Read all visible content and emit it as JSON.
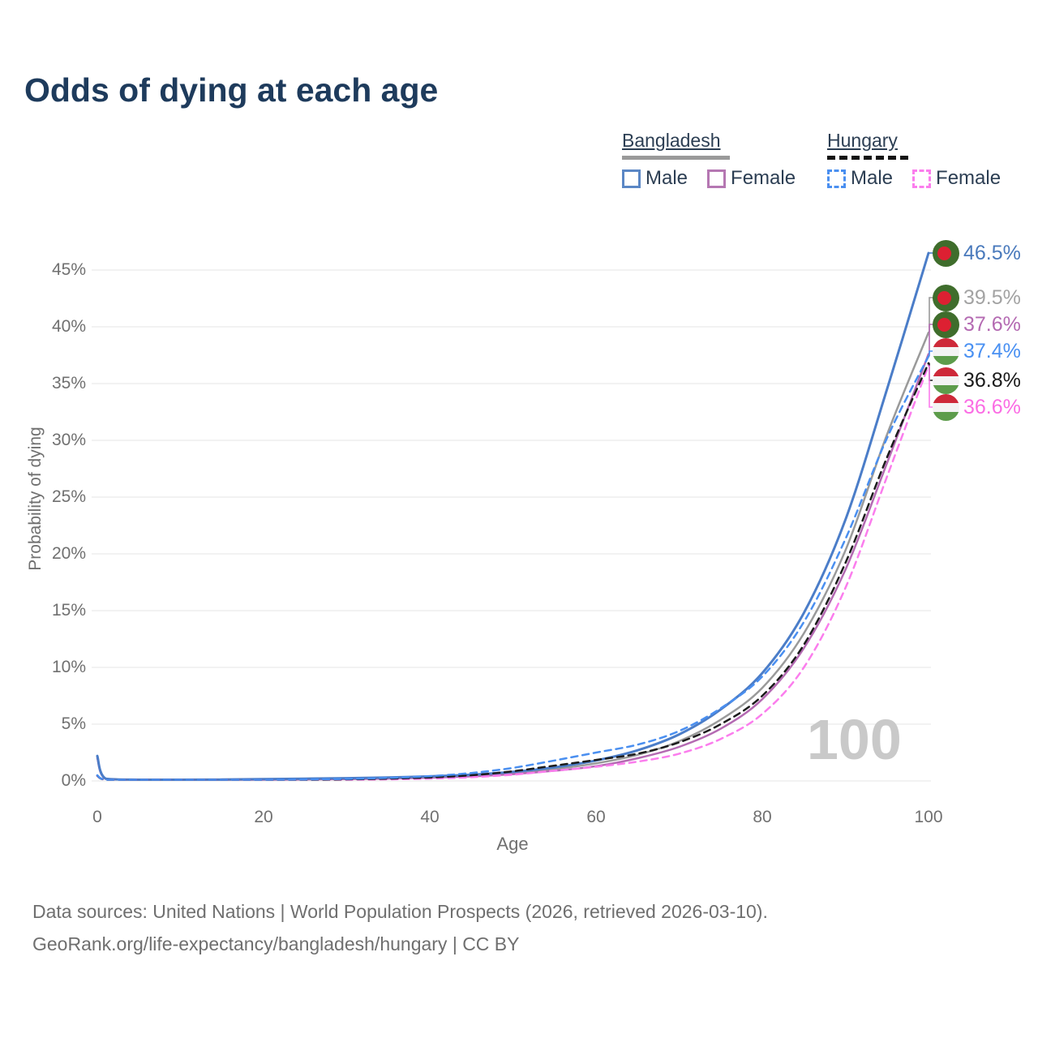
{
  "title": "Odds of dying at each age",
  "watermark": "100",
  "legend": {
    "groups": [
      {
        "name": "Bangladesh",
        "line_style": "solid",
        "line_color": "#9a9a9a",
        "items": [
          {
            "label": "Male",
            "color": "#4b7dc8"
          },
          {
            "label": "Female",
            "color": "#b46ab2"
          }
        ]
      },
      {
        "name": "Hungary",
        "line_style": "dashed",
        "line_color": "#141414",
        "items": [
          {
            "label": "Male",
            "color": "#4a8ff0"
          },
          {
            "label": "Female",
            "color": "#fb7ded"
          }
        ]
      }
    ]
  },
  "footer": {
    "line1": "Data sources: United Nations | World Population Prospects (2026, retrieved 2026-03-10).",
    "line2": "GeoRank.org/life-expectancy/bangladesh/hungary | CC BY"
  },
  "chart_data": {
    "type": "line",
    "title": "Odds of dying at each age",
    "xlabel": "Age",
    "ylabel": "Probability of dying",
    "xlim": [
      0,
      100
    ],
    "ylim_percent": [
      0,
      46.5
    ],
    "grid": "horizontal",
    "x_ticks": [
      0,
      20,
      40,
      60,
      80,
      100
    ],
    "y_ticks_percent": [
      0,
      5,
      10,
      15,
      20,
      25,
      30,
      35,
      40,
      45
    ],
    "y_tick_labels": [
      "0%",
      "5%",
      "10%",
      "15%",
      "20%",
      "25%",
      "30%",
      "35%",
      "40%",
      "45%"
    ],
    "legend_position": "top-right",
    "age_counter": "100",
    "series": [
      {
        "name": "Bangladesh Total",
        "country": "bangladesh",
        "flag": "bangladesh",
        "color": "#9a9a9a",
        "dashed": false,
        "width": 2.5,
        "end_label": "39.5%",
        "label_color": "#a3a3a3",
        "points": [
          [
            0,
            2.1
          ],
          [
            1,
            0.19
          ],
          [
            5,
            0.07
          ],
          [
            10,
            0.07
          ],
          [
            15,
            0.1
          ],
          [
            20,
            0.13
          ],
          [
            25,
            0.17
          ],
          [
            30,
            0.2
          ],
          [
            35,
            0.26
          ],
          [
            40,
            0.34
          ],
          [
            45,
            0.48
          ],
          [
            50,
            0.7
          ],
          [
            55,
            1.05
          ],
          [
            60,
            1.55
          ],
          [
            65,
            2.3
          ],
          [
            70,
            3.5
          ],
          [
            75,
            5.4
          ],
          [
            80,
            8.2
          ],
          [
            85,
            13.0
          ],
          [
            90,
            20.3
          ],
          [
            95,
            30.5
          ],
          [
            100,
            39.5
          ]
        ]
      },
      {
        "name": "Bangladesh Female",
        "country": "bangladesh",
        "flag": "bangladesh",
        "color": "#b46ab2",
        "dashed": false,
        "width": 2.5,
        "end_label": "37.6%",
        "label_color": "#b46ab2",
        "points": [
          [
            0,
            2.0
          ],
          [
            1,
            0.18
          ],
          [
            5,
            0.06
          ],
          [
            10,
            0.06
          ],
          [
            15,
            0.08
          ],
          [
            20,
            0.1
          ],
          [
            25,
            0.13
          ],
          [
            30,
            0.16
          ],
          [
            35,
            0.21
          ],
          [
            40,
            0.28
          ],
          [
            45,
            0.4
          ],
          [
            50,
            0.6
          ],
          [
            55,
            0.9
          ],
          [
            60,
            1.3
          ],
          [
            65,
            2.0
          ],
          [
            70,
            3.0
          ],
          [
            75,
            4.6
          ],
          [
            80,
            7.2
          ],
          [
            85,
            11.7
          ],
          [
            90,
            18.6
          ],
          [
            95,
            28.0
          ],
          [
            100,
            37.6
          ]
        ]
      },
      {
        "name": "Bangladesh Male",
        "country": "bangladesh",
        "flag": "bangladesh",
        "color": "#4b7dc8",
        "dashed": false,
        "width": 3,
        "end_label": "46.5%",
        "label_color": "#4a7abc",
        "points": [
          [
            0,
            2.2
          ],
          [
            1,
            0.2
          ],
          [
            5,
            0.08
          ],
          [
            10,
            0.08
          ],
          [
            15,
            0.12
          ],
          [
            20,
            0.16
          ],
          [
            25,
            0.2
          ],
          [
            30,
            0.24
          ],
          [
            35,
            0.3
          ],
          [
            40,
            0.4
          ],
          [
            45,
            0.55
          ],
          [
            50,
            0.8
          ],
          [
            55,
            1.2
          ],
          [
            60,
            1.8
          ],
          [
            65,
            2.7
          ],
          [
            70,
            4.1
          ],
          [
            75,
            6.3
          ],
          [
            80,
            9.5
          ],
          [
            85,
            14.8
          ],
          [
            90,
            23.0
          ],
          [
            95,
            34.5
          ],
          [
            100,
            46.5
          ]
        ]
      },
      {
        "name": "Hungary Female",
        "country": "hungary",
        "flag": "hungary",
        "color": "#fb7ded",
        "dashed": true,
        "width": 2.5,
        "end_label": "36.6%",
        "label_color": "#fb6ce4",
        "points": [
          [
            0,
            0.44
          ],
          [
            1,
            0.04
          ],
          [
            5,
            0.02
          ],
          [
            10,
            0.02
          ],
          [
            15,
            0.04
          ],
          [
            20,
            0.06
          ],
          [
            25,
            0.08
          ],
          [
            30,
            0.1
          ],
          [
            35,
            0.14
          ],
          [
            40,
            0.21
          ],
          [
            45,
            0.33
          ],
          [
            50,
            0.55
          ],
          [
            55,
            0.9
          ],
          [
            60,
            1.25
          ],
          [
            65,
            1.7
          ],
          [
            70,
            2.4
          ],
          [
            75,
            3.7
          ],
          [
            80,
            5.9
          ],
          [
            85,
            10.0
          ],
          [
            90,
            17.0
          ],
          [
            95,
            26.8
          ],
          [
            100,
            36.6
          ]
        ]
      },
      {
        "name": "Hungary Total",
        "country": "hungary",
        "flag": "hungary",
        "color": "#1c1c1c",
        "dashed": true,
        "width": 2.5,
        "end_label": "36.8%",
        "label_color": "#1a1a1a",
        "points": [
          [
            0,
            0.47
          ],
          [
            1,
            0.04
          ],
          [
            5,
            0.02
          ],
          [
            10,
            0.02
          ],
          [
            15,
            0.05
          ],
          [
            20,
            0.08
          ],
          [
            25,
            0.1
          ],
          [
            30,
            0.14
          ],
          [
            35,
            0.2
          ],
          [
            40,
            0.31
          ],
          [
            45,
            0.5
          ],
          [
            50,
            0.85
          ],
          [
            55,
            1.35
          ],
          [
            60,
            1.85
          ],
          [
            65,
            2.4
          ],
          [
            70,
            3.4
          ],
          [
            75,
            5.0
          ],
          [
            80,
            7.5
          ],
          [
            85,
            12.0
          ],
          [
            90,
            19.2
          ],
          [
            95,
            28.5
          ],
          [
            100,
            36.8
          ]
        ]
      },
      {
        "name": "Hungary Male",
        "country": "hungary",
        "flag": "hungary",
        "color": "#4a8ff0",
        "dashed": true,
        "width": 2.5,
        "end_label": "37.4%",
        "label_color": "#4990f2",
        "points": [
          [
            0,
            0.5
          ],
          [
            1,
            0.05
          ],
          [
            5,
            0.02
          ],
          [
            10,
            0.02
          ],
          [
            15,
            0.06
          ],
          [
            20,
            0.1
          ],
          [
            25,
            0.13
          ],
          [
            30,
            0.18
          ],
          [
            35,
            0.27
          ],
          [
            40,
            0.42
          ],
          [
            45,
            0.7
          ],
          [
            50,
            1.15
          ],
          [
            55,
            1.8
          ],
          [
            60,
            2.5
          ],
          [
            65,
            3.2
          ],
          [
            70,
            4.4
          ],
          [
            75,
            6.4
          ],
          [
            80,
            9.2
          ],
          [
            85,
            14.0
          ],
          [
            90,
            21.3
          ],
          [
            95,
            30.2
          ],
          [
            100,
            37.4
          ]
        ]
      }
    ]
  }
}
